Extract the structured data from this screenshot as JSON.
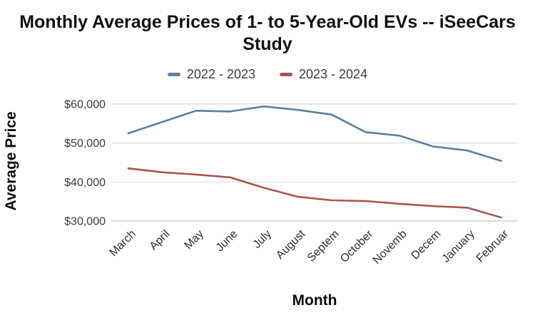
{
  "title": "Monthly Average Prices of 1- to 5-Year-Old EVs -- iSeeCars Study",
  "legend": {
    "items": [
      {
        "label": "2022 - 2023",
        "color": "#5b7f9e"
      },
      {
        "label": "2023 - 2024",
        "color": "#a7574f"
      }
    ]
  },
  "colors": {
    "series_blue": "#5b7f9e",
    "series_red": "#a7574f",
    "gridline": "#d9d9d9",
    "baseline": "#c6c6c6",
    "tick_text": "#3a3a3a",
    "title_text": "#111111"
  },
  "chart_data": {
    "type": "line",
    "title": "Monthly Average Prices of 1- to 5-Year-Old EVs -- iSeeCars Study",
    "xlabel": "Month",
    "ylabel": "Average Price",
    "categories": [
      "March",
      "April",
      "May",
      "June",
      "July",
      "August",
      "Septem",
      "October",
      "Novemb",
      "Decem",
      "January",
      "Februar"
    ],
    "series": [
      {
        "name": "2022 - 2023",
        "color": "#5b7f9e",
        "values": [
          52500,
          55400,
          58300,
          58100,
          59400,
          58500,
          57300,
          52800,
          51900,
          49100,
          48100,
          45400
        ]
      },
      {
        "name": "2023 - 2024",
        "color": "#a7574f",
        "values": [
          43500,
          42500,
          41900,
          41200,
          38500,
          36200,
          35300,
          35100,
          34400,
          33800,
          33400,
          30900
        ]
      }
    ],
    "ylim": [
      30000,
      60000
    ],
    "ytick_values": [
      30000,
      40000,
      50000,
      60000
    ],
    "ytick_labels": [
      "$30,000",
      "$40,000",
      "$50,000",
      "$60,000"
    ],
    "grid": true,
    "legend_position": "top"
  }
}
